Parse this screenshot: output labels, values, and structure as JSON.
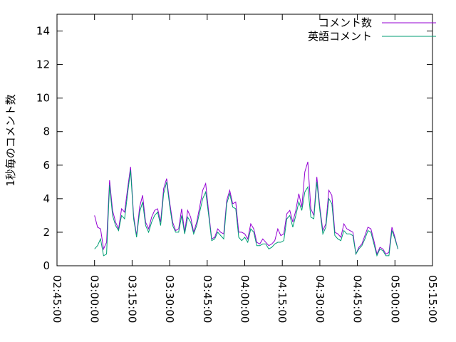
{
  "chart_data": {
    "type": "line",
    "ylabel": "1秒毎のコメント数",
    "x": [
      "03:00:00",
      "03:01:12",
      "03:02:24",
      "03:03:36",
      "03:04:48",
      "03:06:00",
      "03:07:12",
      "03:08:24",
      "03:09:36",
      "03:10:48",
      "03:12:00",
      "03:13:12",
      "03:14:24",
      "03:15:36",
      "03:16:48",
      "03:18:00",
      "03:19:12",
      "03:20:24",
      "03:21:36",
      "03:22:48",
      "03:24:00",
      "03:25:12",
      "03:26:24",
      "03:27:36",
      "03:28:48",
      "03:30:00",
      "03:31:12",
      "03:32:24",
      "03:33:36",
      "03:34:48",
      "03:36:00",
      "03:37:12",
      "03:38:24",
      "03:39:36",
      "03:40:48",
      "03:42:00",
      "03:43:12",
      "03:44:24",
      "03:45:36",
      "03:46:48",
      "03:48:00",
      "03:49:12",
      "03:50:24",
      "03:51:36",
      "03:52:48",
      "03:54:00",
      "03:55:12",
      "03:56:24",
      "03:57:36",
      "03:58:48",
      "04:00:00",
      "04:01:12",
      "04:02:24",
      "04:03:36",
      "04:04:48",
      "04:06:00",
      "04:07:12",
      "04:08:24",
      "04:09:36",
      "04:10:48",
      "04:12:00",
      "04:13:12",
      "04:14:24",
      "04:15:36",
      "04:16:48",
      "04:18:00",
      "04:19:12",
      "04:20:24",
      "04:21:36",
      "04:22:48",
      "04:24:00",
      "04:25:12",
      "04:26:24",
      "04:27:36",
      "04:28:48",
      "04:30:00",
      "04:31:12",
      "04:32:24",
      "04:33:36",
      "04:34:48",
      "04:36:00",
      "04:37:12",
      "04:38:24",
      "04:39:36",
      "04:40:48",
      "04:42:00",
      "04:43:12",
      "04:44:24",
      "04:45:36",
      "04:46:48",
      "04:48:00",
      "04:49:12",
      "04:50:24",
      "04:51:36",
      "04:52:48",
      "04:54:00",
      "04:55:12",
      "04:56:24",
      "04:57:36",
      "04:58:48",
      "05:00:00",
      "05:01:12"
    ],
    "series": [
      {
        "name": "コメント数",
        "color": "#9400d3",
        "values": [
          3.0,
          2.3,
          2.2,
          1.0,
          1.4,
          5.1,
          3.3,
          2.6,
          2.2,
          3.4,
          3.2,
          4.6,
          5.9,
          3.0,
          1.8,
          3.5,
          4.2,
          2.6,
          2.2,
          2.9,
          3.3,
          3.4,
          2.6,
          4.6,
          5.2,
          3.8,
          2.6,
          2.1,
          2.2,
          3.4,
          2.0,
          3.3,
          2.9,
          2.0,
          2.6,
          3.5,
          4.5,
          4.9,
          3.2,
          1.6,
          1.7,
          2.2,
          2.0,
          1.9,
          3.9,
          4.5,
          3.7,
          3.8,
          2.0,
          2.0,
          1.9,
          1.6,
          2.5,
          2.2,
          1.4,
          1.3,
          1.6,
          1.4,
          1.2,
          1.3,
          1.5,
          2.2,
          1.8,
          1.9,
          3.1,
          3.3,
          2.6,
          3.3,
          4.3,
          3.5,
          5.6,
          6.2,
          3.4,
          3.0,
          5.3,
          3.5,
          2.1,
          2.5,
          4.5,
          4.2,
          2.0,
          1.9,
          1.7,
          2.5,
          2.2,
          2.1,
          2.0,
          0.7,
          1.1,
          1.3,
          1.8,
          2.3,
          2.2,
          1.5,
          0.7,
          1.1,
          1.0,
          0.7,
          0.8,
          2.3,
          1.7,
          1.0
        ]
      },
      {
        "name": "英語コメント",
        "color": "#009e73",
        "values": [
          1.0,
          1.2,
          1.6,
          0.6,
          0.7,
          4.8,
          3.0,
          2.4,
          2.1,
          3.0,
          2.8,
          4.3,
          5.7,
          2.8,
          1.7,
          3.2,
          3.8,
          2.4,
          2.0,
          2.6,
          3.0,
          3.2,
          2.4,
          4.3,
          5.0,
          3.6,
          2.4,
          2.0,
          2.0,
          3.0,
          1.9,
          2.9,
          2.6,
          1.9,
          2.4,
          3.2,
          4.0,
          4.4,
          3.0,
          1.5,
          1.6,
          2.0,
          1.8,
          1.6,
          3.7,
          4.3,
          3.5,
          3.4,
          1.7,
          1.5,
          1.7,
          1.4,
          2.2,
          2.0,
          1.2,
          1.2,
          1.3,
          1.3,
          1.0,
          1.1,
          1.3,
          1.4,
          1.4,
          1.5,
          2.8,
          3.0,
          2.3,
          3.0,
          3.8,
          3.3,
          4.4,
          4.7,
          2.9,
          2.8,
          5.0,
          3.3,
          1.9,
          2.3,
          4.0,
          3.7,
          1.8,
          1.6,
          1.5,
          2.1,
          1.9,
          1.9,
          1.8,
          0.7,
          1.0,
          1.2,
          1.6,
          2.1,
          2.0,
          1.3,
          0.6,
          1.0,
          0.9,
          0.6,
          0.6,
          2.1,
          1.6,
          1.0
        ]
      }
    ],
    "xlim": [
      "02:45:00",
      "05:15:00"
    ],
    "xticks": [
      "02:45:00",
      "03:00:00",
      "03:15:00",
      "03:30:00",
      "03:45:00",
      "04:00:00",
      "04:15:00",
      "04:30:00",
      "04:45:00",
      "05:00:00",
      "05:15:00"
    ],
    "ylim": [
      0,
      15
    ],
    "yticks": [
      0,
      2,
      4,
      6,
      8,
      10,
      12,
      14
    ],
    "legend": "top-right"
  }
}
